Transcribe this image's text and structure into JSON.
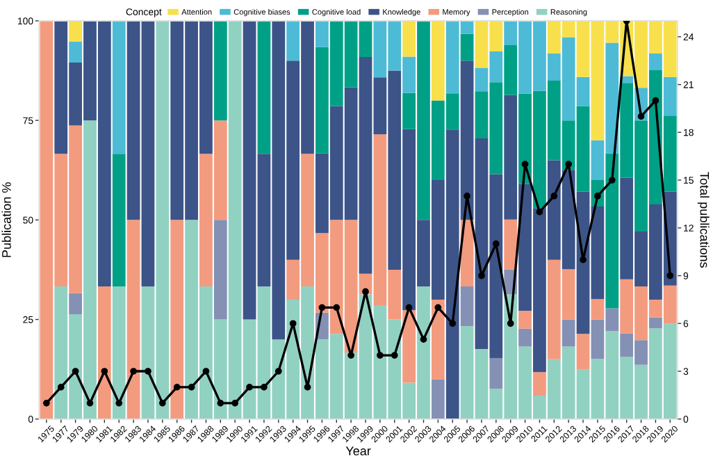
{
  "chart_data": {
    "type": "bar",
    "stacked": true,
    "xlabel": "Year",
    "ylabel": "Publication %",
    "y2label": "Total publications",
    "legend_title": "Concept",
    "legend": "top",
    "categories": [
      "1975",
      "1977",
      "1979",
      "1980",
      "1981",
      "1982",
      "1983",
      "1984",
      "1985",
      "1986",
      "1987",
      "1988",
      "1989",
      "1990",
      "1991",
      "1992",
      "1993",
      "1994",
      "1995",
      "1996",
      "1997",
      "1998",
      "1999",
      "2000",
      "2001",
      "2002",
      "2003",
      "2004",
      "2005",
      "2006",
      "2007",
      "2008",
      "2009",
      "2010",
      "2011",
      "2012",
      "2013",
      "2014",
      "2015",
      "2016",
      "2017",
      "2018",
      "2019",
      "2020"
    ],
    "ylim": [
      0,
      100
    ],
    "yticks": [
      0,
      25,
      50,
      75,
      100
    ],
    "y2lim": [
      0,
      25
    ],
    "y2ticks": [
      0,
      3,
      6,
      9,
      12,
      15,
      18,
      21,
      24
    ],
    "grid": false,
    "series": [
      {
        "name": "Reasoning",
        "color": "#91d1c2",
        "values": [
          0,
          33.3,
          26.3,
          75,
          0,
          33.3,
          0,
          33.3,
          100,
          0,
          50,
          33.3,
          25,
          100,
          25,
          33.3,
          20,
          30,
          33.3,
          20,
          21.4,
          16.7,
          31.3,
          28.6,
          25,
          9.1,
          33.3,
          0,
          0,
          23.3,
          17.6,
          7.6,
          31.3,
          18.2,
          5.9,
          15,
          18.2,
          12.4,
          15.1,
          22.1,
          15.6,
          13.6,
          22.8,
          23.9
        ]
      },
      {
        "name": "Perception",
        "color": "#8491b4",
        "values": [
          0,
          0,
          5.3,
          0,
          0,
          0,
          0,
          0,
          0,
          0,
          0,
          0,
          25,
          0,
          0,
          0,
          0,
          0,
          0,
          6.7,
          0,
          0,
          0,
          0,
          0,
          0,
          0,
          10,
          0,
          10,
          0,
          7.7,
          6.3,
          4.5,
          0,
          0,
          6.8,
          0,
          9.9,
          5.7,
          5.9,
          6.2,
          2.7,
          0
        ]
      },
      {
        "name": "Memory",
        "color": "#f39b7f",
        "values": [
          100,
          33.3,
          42.1,
          0,
          33.3,
          0,
          50,
          0,
          0,
          50,
          0,
          33.3,
          25,
          0,
          0,
          0,
          0,
          10,
          33.3,
          20,
          28.6,
          33.3,
          5.2,
          42.9,
          12.5,
          18.2,
          0,
          20,
          0,
          16.7,
          0,
          0,
          12.5,
          4.5,
          5.9,
          25,
          12.6,
          9,
          5.1,
          0,
          13.6,
          13.5,
          4.5,
          9.6
        ]
      },
      {
        "name": "Knowledge",
        "color": "#3c5488",
        "values": [
          0,
          33.3,
          15.8,
          25,
          66.7,
          0,
          50,
          66.7,
          0,
          50,
          50,
          33.3,
          0,
          0,
          75,
          33.3,
          80,
          50,
          33.3,
          20,
          28.6,
          33.3,
          54.4,
          14.3,
          50,
          45.5,
          16.7,
          30,
          72.7,
          40,
          52.9,
          46.2,
          31.3,
          31.8,
          41.2,
          25,
          25,
          35.7,
          23.3,
          0,
          25.5,
          13.8,
          23.9,
          23.6
        ]
      },
      {
        "name": "Cognitive load",
        "color": "#00a087",
        "values": [
          0,
          0,
          0,
          0,
          0,
          33.3,
          0,
          0,
          0,
          0,
          0,
          0,
          25,
          0,
          0,
          33.3,
          0,
          0,
          0,
          26.7,
          21.4,
          16.7,
          9.1,
          0,
          0,
          9.1,
          50,
          20,
          9.1,
          6.7,
          11.8,
          23.1,
          12.5,
          22.7,
          29.4,
          20,
          12.4,
          21.5,
          6.6,
          38.9,
          23.8,
          27.9,
          33.7,
          19.1
        ]
      },
      {
        "name": "Cognitive biases",
        "color": "#4dbbd5",
        "values": [
          0,
          0,
          5.3,
          0,
          0,
          33.3,
          0,
          0,
          0,
          0,
          0,
          0,
          0,
          0,
          0,
          0,
          0,
          10,
          0,
          6.7,
          0,
          0,
          0,
          14.3,
          12.5,
          9.1,
          0,
          0,
          18.2,
          3.3,
          5.9,
          7.7,
          6.2,
          18.2,
          17.6,
          6.8,
          20.9,
          7.3,
          10,
          27.8,
          1.7,
          8.2,
          4.2,
          9.7
        ]
      },
      {
        "name": "Attention",
        "color": "#f7e04b",
        "values": [
          0,
          0,
          5.3,
          0,
          0,
          0,
          0,
          0,
          0,
          0,
          0,
          0,
          0,
          0,
          0,
          0,
          0,
          0,
          0,
          0,
          0,
          0,
          0,
          0,
          0,
          9.1,
          0,
          20,
          0,
          0,
          11.8,
          7.6,
          0,
          0,
          0,
          8.2,
          4.1,
          14.1,
          30,
          5.5,
          13.9,
          16.8,
          8.2,
          14.1
        ]
      },
      {
        "type": "line",
        "axis": "y2",
        "color": "#000000",
        "marker": "circle",
        "line_style": "solid",
        "values": [
          1,
          2,
          3,
          1,
          3,
          1,
          3,
          3,
          1,
          2,
          2,
          3,
          1,
          1,
          2,
          2,
          3,
          6,
          2,
          7,
          7,
          4,
          8,
          4,
          4,
          7,
          5,
          7,
          6,
          14,
          9,
          11,
          6,
          16,
          13,
          14,
          16,
          10,
          14,
          15,
          25,
          19,
          20,
          9
        ]
      }
    ]
  }
}
